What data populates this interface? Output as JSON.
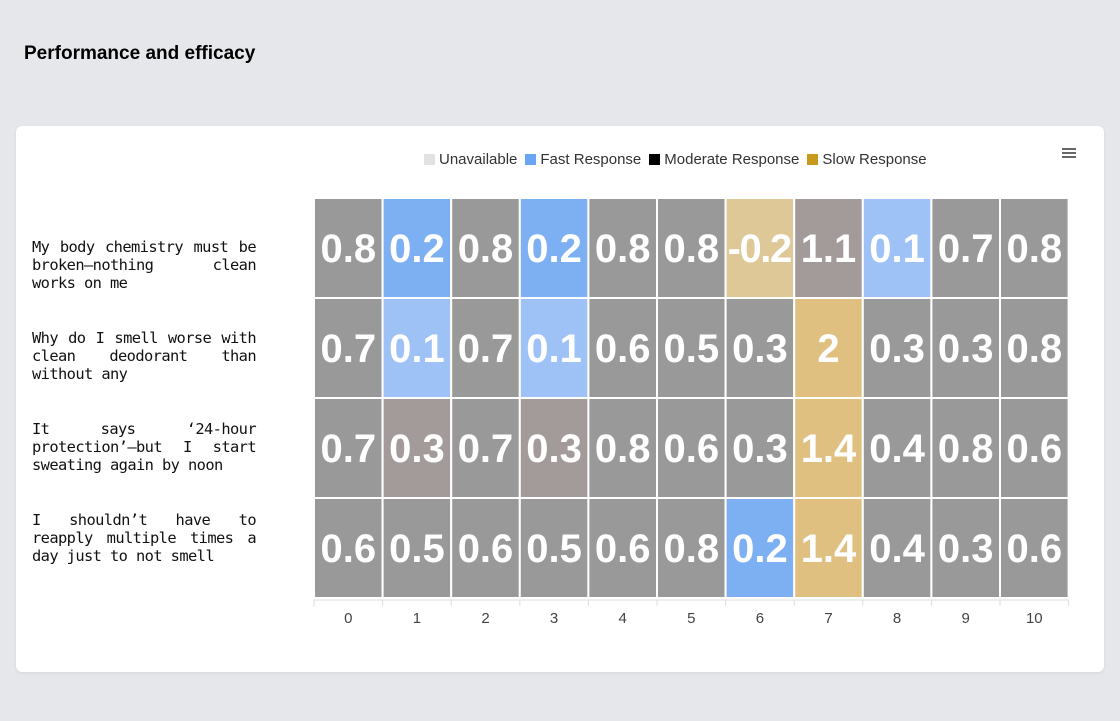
{
  "page": {
    "title": "Performance and efficacy"
  },
  "legend": [
    {
      "label": "Unavailable",
      "color": "#e2e2e2"
    },
    {
      "label": "Fast Response",
      "color": "#6aa5f3"
    },
    {
      "label": "Moderate Response",
      "color": "#000000"
    },
    {
      "label": "Slow Response",
      "color": "#c79a1e"
    }
  ],
  "menu": {
    "icon": "hamburger-menu-icon"
  },
  "chart_data": {
    "type": "heatmap",
    "title": "",
    "x": [
      0,
      1,
      2,
      3,
      4,
      5,
      6,
      7,
      8,
      9,
      10
    ],
    "rows": [
      "My body chemistry must be broken—nothing clean works on me",
      "Why do I smell worse with clean deodorant than without any",
      "It says ‘24-hour protection’—but I start sweating again by noon",
      "I shouldn’t have to reapply multiple times a day just to not smell"
    ],
    "values": [
      [
        0.8,
        0.2,
        0.8,
        0.2,
        0.8,
        0.8,
        -0.2,
        1.1,
        0.1,
        0.7,
        0.8
      ],
      [
        0.7,
        0.1,
        0.7,
        0.1,
        0.6,
        0.5,
        0.3,
        2,
        0.3,
        0.3,
        0.8
      ],
      [
        0.7,
        0.3,
        0.7,
        0.3,
        0.8,
        0.6,
        0.3,
        1.4,
        0.4,
        0.8,
        0.6
      ],
      [
        0.6,
        0.5,
        0.6,
        0.5,
        0.6,
        0.8,
        0.2,
        1.4,
        0.4,
        0.3,
        0.6
      ]
    ],
    "cell_colors": [
      [
        "#999999",
        "#7db0f2",
        "#999999",
        "#7db0f2",
        "#999999",
        "#999999",
        "#dfc897",
        "#a39a9a",
        "#9ec2f6",
        "#999999",
        "#999999"
      ],
      [
        "#999999",
        "#9ec2f6",
        "#999999",
        "#9ec2f6",
        "#999999",
        "#999999",
        "#999999",
        "#dfc080",
        "#999999",
        "#999999",
        "#999999"
      ],
      [
        "#999999",
        "#a39a9a",
        "#999999",
        "#a39a9a",
        "#999999",
        "#999999",
        "#999999",
        "#dfc080",
        "#999999",
        "#999999",
        "#999999"
      ],
      [
        "#999999",
        "#999999",
        "#999999",
        "#999999",
        "#999999",
        "#999999",
        "#7db0f2",
        "#dfc080",
        "#999999",
        "#999999",
        "#999999"
      ]
    ],
    "grid": false,
    "legend_position": "top"
  }
}
